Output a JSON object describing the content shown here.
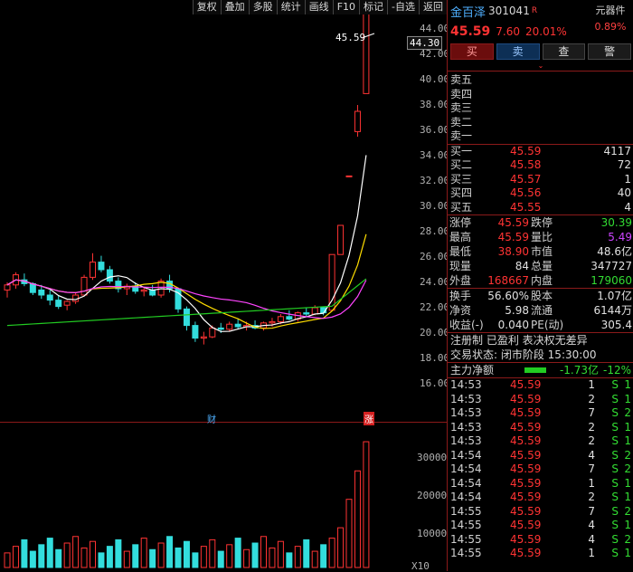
{
  "toolbar": [
    "复权",
    "叠加",
    "多股",
    "统计",
    "画线",
    "F10",
    "标记",
    "-自选",
    "返回"
  ],
  "price_axis": [
    "44.00",
    "42.00",
    "40.00",
    "38.00",
    "36.00",
    "34.00",
    "32.00",
    "30.00",
    "28.00",
    "26.00",
    "24.00",
    "22.00",
    "20.00",
    "18.00",
    "16.00"
  ],
  "price_tag": "44.30",
  "high_label": "45.59",
  "vol_axis": [
    "30000",
    "20000",
    "10000"
  ],
  "vol_unit": "X10",
  "markers": {
    "cai": "财",
    "zhang": "涨"
  },
  "stock": {
    "name": "金百泽",
    "code": "301041",
    "badge": "R",
    "category": "元器件",
    "category_pct": "0.89%",
    "price": "45.59",
    "change": "7.60",
    "change_pct": "20.01%"
  },
  "buttons": {
    "buy": "买",
    "sell": "卖",
    "query": "查",
    "alert": "警"
  },
  "chevron": "⌄",
  "sell_book": [
    {
      "label": "卖五",
      "price": "",
      "vol": ""
    },
    {
      "label": "卖四",
      "price": "",
      "vol": ""
    },
    {
      "label": "卖三",
      "price": "",
      "vol": ""
    },
    {
      "label": "卖二",
      "price": "",
      "vol": ""
    },
    {
      "label": "卖一",
      "price": "",
      "vol": ""
    }
  ],
  "buy_book": [
    {
      "label": "买一",
      "price": "45.59",
      "vol": "4117"
    },
    {
      "label": "买二",
      "price": "45.58",
      "vol": "72"
    },
    {
      "label": "买三",
      "price": "45.57",
      "vol": "1"
    },
    {
      "label": "买四",
      "price": "45.56",
      "vol": "40"
    },
    {
      "label": "买五",
      "price": "45.55",
      "vol": "4"
    }
  ],
  "quotes1": [
    {
      "k": "涨停",
      "v": "45.59",
      "vc": "#ff3333",
      "k2": "跌停",
      "v2": "30.39",
      "v2c": "#33dd33"
    },
    {
      "k": "最高",
      "v": "45.59",
      "vc": "#ff3333",
      "k2": "量比",
      "v2": "5.49",
      "v2c": "#cc44ff"
    },
    {
      "k": "最低",
      "v": "38.90",
      "vc": "#ff3333",
      "k2": "市值",
      "v2": "48.6亿",
      "v2c": "#e0e0e0"
    },
    {
      "k": "现量",
      "v": "84",
      "vc": "#e0e0e0",
      "k2": "总量",
      "v2": "347727",
      "v2c": "#e0e0e0"
    },
    {
      "k": "外盘",
      "v": "168667",
      "vc": "#ff3333",
      "k2": "内盘",
      "v2": "179060",
      "v2c": "#33dd33"
    }
  ],
  "quotes2": [
    {
      "k": "换手",
      "v": "56.60%",
      "vc": "#e0e0e0",
      "k2": "股本",
      "v2": "1.07亿",
      "v2c": "#e0e0e0"
    },
    {
      "k": "净资",
      "v": "5.98",
      "vc": "#e0e0e0",
      "k2": "流通",
      "v2": "6144万",
      "v2c": "#e0e0e0"
    },
    {
      "k": "收益(-)",
      "v": "0.040",
      "vc": "#e0e0e0",
      "k2": "PE(动)",
      "v2": "305.4",
      "v2c": "#e0e0e0"
    }
  ],
  "tags_line": "注册制 已盈利 表决权无差异",
  "status_line": "交易状态: 闭市阶段 15:30:00",
  "main_flow": {
    "label": "主力净额",
    "value": "-1.73亿",
    "pct": "-12%"
  },
  "ticks": [
    {
      "t": "14:53",
      "p": "45.59",
      "q": "1",
      "s": "S",
      "x": "1"
    },
    {
      "t": "14:53",
      "p": "45.59",
      "q": "2",
      "s": "S",
      "x": "1"
    },
    {
      "t": "14:53",
      "p": "45.59",
      "q": "7",
      "s": "S",
      "x": "2"
    },
    {
      "t": "14:53",
      "p": "45.59",
      "q": "2",
      "s": "S",
      "x": "1"
    },
    {
      "t": "14:53",
      "p": "45.59",
      "q": "2",
      "s": "S",
      "x": "1"
    },
    {
      "t": "14:54",
      "p": "45.59",
      "q": "4",
      "s": "S",
      "x": "2"
    },
    {
      "t": "14:54",
      "p": "45.59",
      "q": "7",
      "s": "S",
      "x": "2"
    },
    {
      "t": "14:54",
      "p": "45.59",
      "q": "1",
      "s": "S",
      "x": "1"
    },
    {
      "t": "14:54",
      "p": "45.59",
      "q": "2",
      "s": "S",
      "x": "1"
    },
    {
      "t": "14:55",
      "p": "45.59",
      "q": "7",
      "s": "S",
      "x": "2"
    },
    {
      "t": "14:55",
      "p": "45.59",
      "q": "4",
      "s": "S",
      "x": "1"
    },
    {
      "t": "14:55",
      "p": "45.59",
      "q": "4",
      "s": "S",
      "x": "2"
    },
    {
      "t": "14:55",
      "p": "45.59",
      "q": "1",
      "s": "S",
      "x": "1"
    }
  ]
}
